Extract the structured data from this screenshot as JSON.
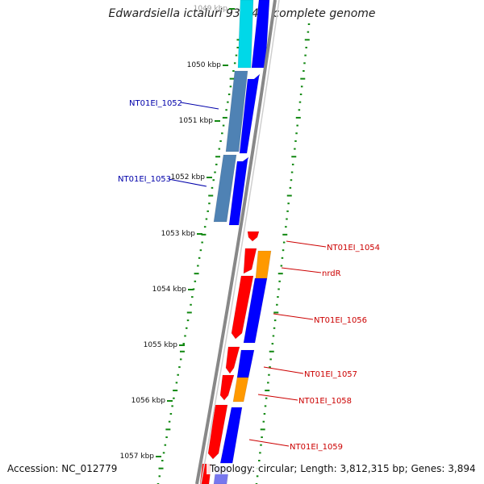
{
  "title": "Edwardsiella ictaluri 93-146, complete genome",
  "footer": {
    "accession": "Accession: NC_012779",
    "summary": "Topology: circular; Length: 3,812,315 bp; Genes: 3,894"
  },
  "colors": {
    "cds_plus": "#0000ff",
    "cds_minus": "#ff0000",
    "rna_blue": "#4f82b4",
    "cyan_feature": "#00d8e8",
    "orange_feature": "#ff9900",
    "backbone": "#888888",
    "gc_dots": "#118811",
    "label_blue": "#0000aa",
    "label_red": "#cc0000"
  },
  "scale_labels": [
    "1049 kbp",
    "1050 kbp",
    "1051 kbp",
    "1052 kbp",
    "1053 kbp",
    "1054 kbp",
    "1055 kbp",
    "1056 kbp",
    "1057 kbp"
  ],
  "gene_labels": [
    {
      "text": "NT01EI_1052",
      "color": "blue"
    },
    {
      "text": "NT01EI_1053",
      "color": "blue"
    },
    {
      "text": "NT01EI_1054",
      "color": "red"
    },
    {
      "text": "nrdR",
      "color": "red"
    },
    {
      "text": "NT01EI_1056",
      "color": "red"
    },
    {
      "text": "NT01EI_1057",
      "color": "red"
    },
    {
      "text": "NT01EI_1058",
      "color": "red"
    },
    {
      "text": "NT01EI_1059",
      "color": "red"
    }
  ]
}
